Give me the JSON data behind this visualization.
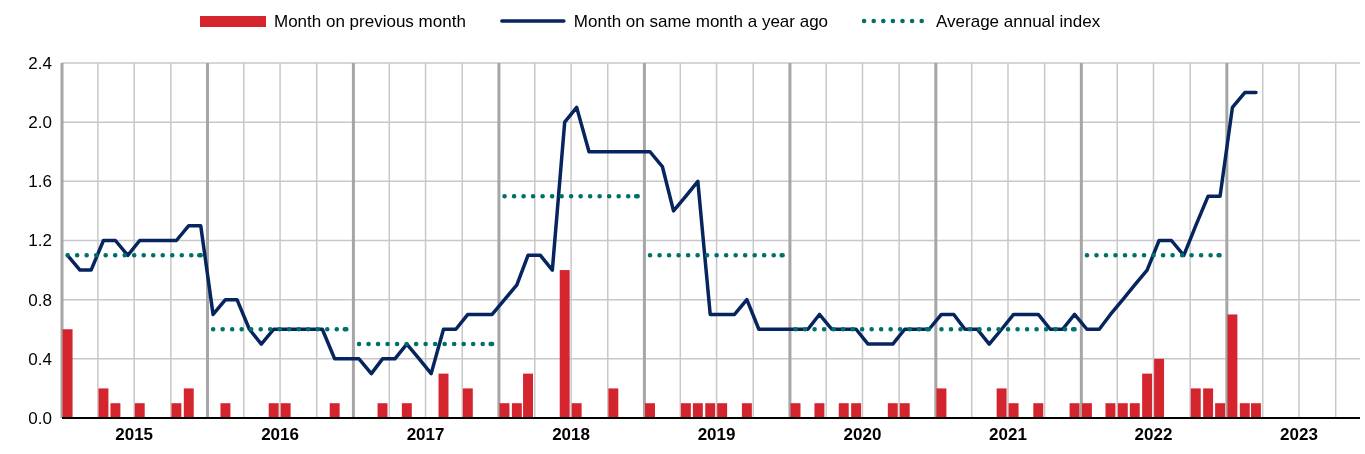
{
  "chart_data": {
    "type": "bar",
    "legend": "top",
    "grid": true,
    "x": [
      "2015-01-15",
      "2015-02-15",
      "2015-03-15",
      "2015-04-15",
      "2015-05-15",
      "2015-06-15",
      "2015-07-15",
      "2015-08-15",
      "2015-09-15",
      "2015-10-15",
      "2015-11-15",
      "2015-12-15",
      "2016-01-15",
      "2016-02-15",
      "2016-03-15",
      "2016-04-15",
      "2016-05-15",
      "2016-06-15",
      "2016-07-15",
      "2016-08-15",
      "2016-09-15",
      "2016-10-15",
      "2016-11-15",
      "2016-12-15",
      "2017-01-15",
      "2017-02-15",
      "2017-03-15",
      "2017-04-15",
      "2017-05-15",
      "2017-06-15",
      "2017-07-15",
      "2017-08-15",
      "2017-09-15",
      "2017-10-15",
      "2017-11-15",
      "2017-12-15",
      "2018-01-15",
      "2018-02-15",
      "2018-03-15",
      "2018-04-15",
      "2018-05-15",
      "2018-06-15",
      "2018-07-15",
      "2018-08-15",
      "2018-09-15",
      "2018-10-15",
      "2018-11-15",
      "2018-12-15",
      "2019-01-15",
      "2019-02-15",
      "2019-03-15",
      "2019-04-15",
      "2019-05-15",
      "2019-06-15",
      "2019-07-15",
      "2019-08-15",
      "2019-09-15",
      "2019-10-15",
      "2019-11-15",
      "2019-12-15",
      "2020-01-15",
      "2020-02-15",
      "2020-03-15",
      "2020-04-15",
      "2020-05-15",
      "2020-06-15",
      "2020-07-15",
      "2020-08-15",
      "2020-09-15",
      "2020-10-15",
      "2020-11-15",
      "2020-12-15",
      "2021-01-15",
      "2021-02-15",
      "2021-03-15",
      "2021-04-15",
      "2021-05-15",
      "2021-06-15",
      "2021-07-15",
      "2021-08-15",
      "2021-09-15",
      "2021-10-15",
      "2021-11-15",
      "2021-12-15",
      "2022-01-15",
      "2022-02-15",
      "2022-03-15",
      "2022-04-15",
      "2022-05-15",
      "2022-06-15",
      "2022-07-15",
      "2022-08-15",
      "2022-09-15",
      "2022-10-15",
      "2022-11-15",
      "2022-12-15",
      "2023-01-15",
      "2023-02-15",
      "2023-03-15"
    ],
    "xlim": [
      "2015-01-01",
      "2023-12-01"
    ],
    "xticks": [
      {
        "value": "2015-01-01",
        "label": null
      },
      {
        "value": "2015-04-01",
        "label": null
      },
      {
        "value": "2015-07-01",
        "label": "2015"
      },
      {
        "value": "2015-10-01",
        "label": null
      },
      {
        "value": "2016-01-01",
        "label": null
      },
      {
        "value": "2016-04-01",
        "label": null
      },
      {
        "value": "2016-07-01",
        "label": "2016"
      },
      {
        "value": "2016-10-01",
        "label": null
      },
      {
        "value": "2017-01-01",
        "label": null
      },
      {
        "value": "2017-04-01",
        "label": null
      },
      {
        "value": "2017-07-01",
        "label": "2017"
      },
      {
        "value": "2017-10-01",
        "label": null
      },
      {
        "value": "2018-01-01",
        "label": null
      },
      {
        "value": "2018-04-01",
        "label": null
      },
      {
        "value": "2018-07-01",
        "label": "2018"
      },
      {
        "value": "2018-10-01",
        "label": null
      },
      {
        "value": "2019-01-01",
        "label": null
      },
      {
        "value": "2019-04-01",
        "label": null
      },
      {
        "value": "2019-07-01",
        "label": "2019"
      },
      {
        "value": "2019-10-01",
        "label": null
      },
      {
        "value": "2020-01-01",
        "label": null
      },
      {
        "value": "2020-04-01",
        "label": null
      },
      {
        "value": "2020-07-01",
        "label": "2020"
      },
      {
        "value": "2020-10-01",
        "label": null
      },
      {
        "value": "2021-01-01",
        "label": null
      },
      {
        "value": "2021-04-01",
        "label": null
      },
      {
        "value": "2021-07-01",
        "label": "2021"
      },
      {
        "value": "2021-10-01",
        "label": null
      },
      {
        "value": "2022-01-01",
        "label": null
      },
      {
        "value": "2022-04-01",
        "label": null
      },
      {
        "value": "2022-07-01",
        "label": "2022"
      },
      {
        "value": "2022-10-01",
        "label": null
      },
      {
        "value": "2023-01-01",
        "label": null
      },
      {
        "value": "2023-04-01",
        "label": null
      },
      {
        "value": "2023-07-01",
        "label": "2023"
      },
      {
        "value": "2023-10-01",
        "label": null
      }
    ],
    "ylim": [
      0,
      2.4
    ],
    "yticks": [
      {
        "value": 0,
        "label": "0.0"
      },
      0.4,
      0.8,
      1.2,
      1.6,
      {
        "value": 2,
        "label": "2.0"
      },
      2.4
    ],
    "series": [
      {
        "name": "Month on previous month",
        "color": "#d4252f",
        "values": [
          0.6,
          0,
          0,
          0.2,
          0.1,
          0,
          0.1,
          0,
          0,
          0.1,
          0.2,
          0,
          0,
          0.1,
          0,
          0,
          0,
          0.1,
          0.1,
          0,
          0,
          0,
          0.1,
          0,
          0,
          0,
          0.1,
          0,
          0.1,
          0,
          0,
          0.3,
          0,
          0.2,
          0,
          0,
          0.1,
          0.1,
          0.3,
          0,
          0,
          1.0,
          0.1,
          0,
          0,
          0.2,
          0,
          0,
          0.1,
          0,
          0,
          0.1,
          0.1,
          0.1,
          0.1,
          0,
          0.1,
          0,
          0,
          0,
          0.1,
          0,
          0.1,
          0,
          0.1,
          0.1,
          0,
          0,
          0.1,
          0.1,
          0,
          0,
          0.2,
          0,
          0,
          0,
          0,
          0.2,
          0.1,
          0,
          0.1,
          0,
          0,
          0.1,
          0.1,
          0,
          0.1,
          0.1,
          0.1,
          0.3,
          0.4,
          0,
          0,
          0.2,
          0.2,
          0.1,
          0.7,
          0.1,
          0.1
        ]
      },
      {
        "name": "Month on same month a year ago",
        "type": "line",
        "color": "#06245e",
        "line_style": "solid",
        "values": [
          1.1,
          1.0,
          1.0,
          1.2,
          1.2,
          1.1,
          1.2,
          1.2,
          1.2,
          1.2,
          1.3,
          1.3,
          0.7,
          0.8,
          0.8,
          0.6,
          0.5,
          0.6,
          0.6,
          0.6,
          0.6,
          0.6,
          0.4,
          0.4,
          0.4,
          0.3,
          0.4,
          0.4,
          0.5,
          0.4,
          0.3,
          0.6,
          0.6,
          0.7,
          0.7,
          0.7,
          0.8,
          0.9,
          1.1,
          1.1,
          1.0,
          2.0,
          2.1,
          1.8,
          1.8,
          1.8,
          1.8,
          1.8,
          1.8,
          1.7,
          1.4,
          1.5,
          1.6,
          0.7,
          0.7,
          0.7,
          0.8,
          0.6,
          0.6,
          0.6,
          0.6,
          0.6,
          0.7,
          0.6,
          0.6,
          0.6,
          0.5,
          0.5,
          0.5,
          0.6,
          0.6,
          0.6,
          0.7,
          0.7,
          0.6,
          0.6,
          0.5,
          0.6,
          0.7,
          0.7,
          0.7,
          0.6,
          0.6,
          0.7,
          0.6,
          0.6,
          0.7,
          0.8,
          0.9,
          1.0,
          1.2,
          1.2,
          1.1,
          1.3,
          1.5,
          1.5,
          2.1,
          2.2,
          2.2
        ]
      },
      {
        "name": "Average annual index",
        "type": "line",
        "color": "#00706a",
        "line_style": "dotted",
        "x": [
          "2015-01-15",
          "2015-12-15",
          "2016-01-01",
          "2016-01-15",
          "2016-12-15",
          "2017-01-01",
          "2017-01-15",
          "2017-12-15",
          "2018-01-01",
          "2018-01-15",
          "2018-12-15",
          "2019-01-01",
          "2019-01-15",
          "2019-12-15",
          "2020-01-01",
          "2020-01-15",
          "2020-12-15",
          "2021-01-01",
          "2021-01-15",
          "2021-12-15",
          "2022-01-01",
          "2022-01-15",
          "2022-12-15"
        ],
        "values": [
          1.1,
          1.1,
          null,
          0.6,
          0.6,
          null,
          0.5,
          0.5,
          null,
          1.5,
          1.5,
          null,
          1.1,
          1.1,
          null,
          0.6,
          0.6,
          null,
          0.6,
          0.6,
          null,
          1.1,
          1.1
        ]
      }
    ]
  }
}
